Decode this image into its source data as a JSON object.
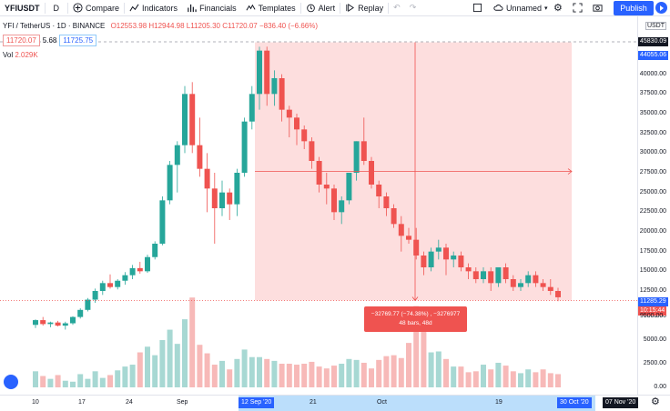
{
  "toolbar": {
    "symbol": "YFIUSDT",
    "interval": "D",
    "compare": "Compare",
    "indicators": "Indicators",
    "financials": "Financials",
    "templates": "Templates",
    "alert": "Alert",
    "replay": "Replay",
    "layout_name": "Unnamed",
    "publish": "Publish"
  },
  "legend": {
    "title": "YFI / TetherUS · 1D · BINANCE",
    "ohlc": "O12553.98 H12944.98 L11205.30 C11720.07 −836.40 (−6.66%)",
    "bid": "11720.07",
    "spread": "5.68",
    "ask": "11725.75",
    "vol_label": "Vol",
    "vol_value": "2.029K"
  },
  "axis": {
    "quote": "USDT",
    "y_ticks": [
      "42500.00",
      "40000.00",
      "37500.00",
      "35000.00",
      "32500.00",
      "30000.00",
      "27500.00",
      "25000.00",
      "22500.00",
      "20000.00",
      "17500.00",
      "15000.00",
      "12500.00"
    ],
    "vol_ticks": [
      "7500.00",
      "5000.00",
      "2500.00",
      "0.00"
    ],
    "x_ticks": [
      "10",
      "17",
      "24",
      "Sep",
      "21",
      "Oct",
      "19"
    ],
    "x_sel_start": "12 Sep '20",
    "x_sel_end": "30 Oct '20",
    "x_cursor": "07 Nov '20",
    "price_crosshair": "45830.09",
    "price_top": "44055.06",
    "price_last": "11285.29",
    "countdown": "10:15:44",
    "price_next": "9500.00"
  },
  "measure": {
    "line1": "−32769.77 (−74.38%) , −3276977",
    "line2": "48 bars, 48d"
  },
  "colors": {
    "up": "#26a69a",
    "down": "#ef5350",
    "range_fill": "#fdd8d8",
    "accent": "#2962ff"
  },
  "chart_data": {
    "type": "candlestick",
    "symbol": "YFI / TetherUS",
    "ylim": [
      10000,
      43500
    ],
    "candles": [
      [
        8200,
        8900,
        7800,
        8800
      ],
      [
        8800,
        9200,
        8100,
        8300
      ],
      [
        8300,
        8600,
        7900,
        8500
      ],
      [
        8500,
        8700,
        8000,
        8100
      ],
      [
        8100,
        8600,
        7600,
        8400
      ],
      [
        8400,
        9300,
        8200,
        9200
      ],
      [
        9200,
        10300,
        9000,
        10100
      ],
      [
        10100,
        11600,
        9900,
        11400
      ],
      [
        11400,
        12800,
        11000,
        12500
      ],
      [
        12500,
        13800,
        12000,
        13500
      ],
      [
        13500,
        14600,
        12800,
        13000
      ],
      [
        13000,
        14000,
        12700,
        13800
      ],
      [
        13800,
        14900,
        13300,
        14500
      ],
      [
        14500,
        15800,
        14000,
        15400
      ],
      [
        15400,
        16200,
        14700,
        15000
      ],
      [
        15000,
        17100,
        14800,
        16800
      ],
      [
        16800,
        18800,
        16500,
        18500
      ],
      [
        18500,
        24500,
        18300,
        24000
      ],
      [
        24000,
        29000,
        23500,
        28500
      ],
      [
        28500,
        31500,
        25000,
        31000
      ],
      [
        31000,
        38500,
        30000,
        37500
      ],
      [
        37500,
        39000,
        30000,
        31000
      ],
      [
        31000,
        34500,
        27000,
        28000
      ],
      [
        28000,
        30000,
        22500,
        25500
      ],
      [
        25500,
        27500,
        18500,
        23000
      ],
      [
        23000,
        26500,
        22000,
        25000
      ],
      [
        25000,
        25500,
        21500,
        23500
      ],
      [
        23500,
        28000,
        22000,
        27500
      ],
      [
        27500,
        34500,
        27000,
        34000
      ],
      [
        34000,
        38500,
        33000,
        37500
      ],
      [
        37500,
        43500,
        35500,
        43000
      ],
      [
        43000,
        43500,
        36000,
        37500
      ],
      [
        37500,
        40500,
        36000,
        39500
      ],
      [
        39500,
        40000,
        34000,
        35500
      ],
      [
        35500,
        36000,
        32000,
        34500
      ],
      [
        34500,
        35000,
        31000,
        33000
      ],
      [
        33000,
        33500,
        30500,
        31500
      ],
      [
        31500,
        32000,
        28000,
        29000
      ],
      [
        29000,
        29500,
        25000,
        26000
      ],
      [
        26000,
        27500,
        23500,
        25500
      ],
      [
        25500,
        26000,
        21500,
        22500
      ],
      [
        22500,
        24500,
        21000,
        24000
      ],
      [
        24000,
        27500,
        23500,
        27500
      ],
      [
        27500,
        31500,
        26500,
        31500
      ],
      [
        31500,
        34500,
        28500,
        29000
      ],
      [
        29000,
        29500,
        25500,
        26000
      ],
      [
        26000,
        26500,
        23000,
        24500
      ],
      [
        24500,
        25000,
        22000,
        23000
      ],
      [
        23000,
        23500,
        20500,
        21000
      ],
      [
        21000,
        22000,
        17500,
        19500
      ],
      [
        19500,
        20500,
        18500,
        19000
      ],
      [
        19000,
        20500,
        16500,
        17000
      ],
      [
        17000,
        17500,
        14500,
        15500
      ],
      [
        15500,
        18000,
        15000,
        17500
      ],
      [
        17500,
        19000,
        16500,
        18000
      ],
      [
        18000,
        18500,
        14500,
        16500
      ],
      [
        16500,
        17500,
        15500,
        17000
      ],
      [
        17000,
        17500,
        15000,
        15500
      ],
      [
        15500,
        16000,
        14000,
        15000
      ],
      [
        15000,
        15500,
        13500,
        14000
      ],
      [
        14000,
        15500,
        13500,
        15000
      ],
      [
        15000,
        15500,
        12500,
        13500
      ],
      [
        13500,
        15500,
        13000,
        15500
      ],
      [
        15500,
        16000,
        13500,
        14000
      ],
      [
        14000,
        14500,
        12500,
        13000
      ],
      [
        13000,
        14000,
        12500,
        13500
      ],
      [
        13500,
        15000,
        13000,
        14500
      ],
      [
        14500,
        15000,
        13000,
        13500
      ],
      [
        13500,
        14000,
        12500,
        13000
      ],
      [
        13000,
        14000,
        12000,
        12500
      ],
      [
        12500,
        12900,
        11200,
        11700
      ]
    ],
    "volumes": [
      1700,
      1200,
      900,
      1300,
      700,
      600,
      1400,
      900,
      1700,
      1000,
      1300,
      1800,
      2200,
      2400,
      3700,
      4300,
      3400,
      5000,
      6100,
      4600,
      7200,
      9500,
      4500,
      3600,
      2400,
      2800,
      1900,
      3000,
      4000,
      3200,
      3200,
      3000,
      2800,
      2500,
      2500,
      2400,
      2500,
      2700,
      2200,
      2000,
      2300,
      2500,
      3000,
      2900,
      2600,
      2000,
      2900,
      3300,
      3400,
      3100,
      4700,
      8600,
      7000,
      3700,
      3800,
      3000,
      2200,
      2200,
      1600,
      1700,
      2400,
      1900,
      2600,
      2300,
      1700,
      1500,
      1900,
      1600,
      1900,
      1500,
      1400
    ]
  }
}
